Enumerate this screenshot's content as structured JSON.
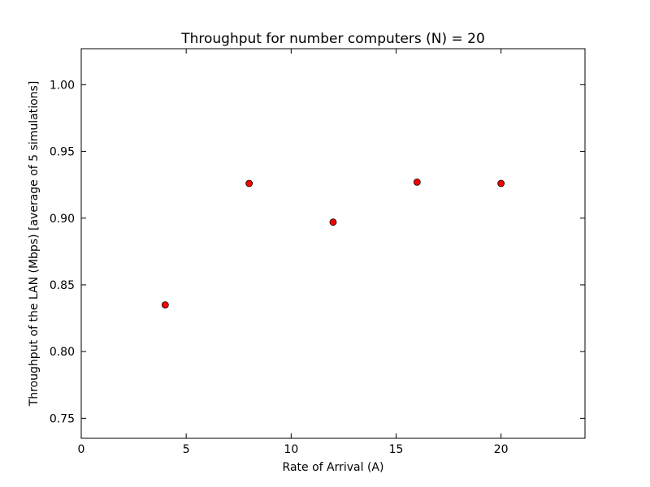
{
  "chart_data": {
    "type": "scatter",
    "title": "Throughput for number computers (N) = 20",
    "xlabel": "Rate of Arrival (A)",
    "ylabel": "Throughput of the LAN (Mbps) [average of 5 simulations]",
    "xlim": [
      0,
      24
    ],
    "ylim": [
      0.735,
      1.027
    ],
    "xticks": [
      0,
      5,
      10,
      15,
      20
    ],
    "xtick_labels": [
      "0",
      "5",
      "10",
      "15",
      "20"
    ],
    "yticks": [
      0.75,
      0.8,
      0.85,
      0.9,
      0.95,
      1.0
    ],
    "ytick_labels": [
      "0.75",
      "0.80",
      "0.85",
      "0.90",
      "0.95",
      "1.00"
    ],
    "grid": false,
    "marker_color": "#ff0000",
    "marker_edge_color": "#000000",
    "series": [
      {
        "x": [
          4,
          8,
          12,
          16,
          20
        ],
        "y": [
          0.835,
          0.926,
          0.897,
          0.927,
          0.926
        ]
      }
    ]
  }
}
